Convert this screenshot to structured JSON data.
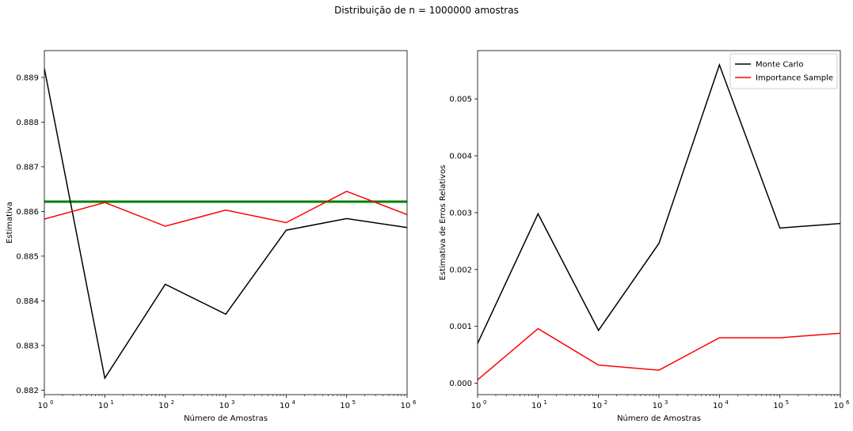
{
  "figure": {
    "suptitle": "Distribuição de n = 1000000 amostras"
  },
  "chart_data": [
    {
      "type": "line",
      "xscale": "log",
      "xlim": [
        1,
        1000000
      ],
      "ylim": [
        0.8819,
        0.8896
      ],
      "xlabel": "Número de Amostras",
      "ylabel": "Estimativa",
      "xticks": [
        1,
        10,
        100,
        1000,
        10000,
        100000,
        1000000
      ],
      "xtick_labels": [
        "10",
        "10",
        "10",
        "10",
        "10",
        "10",
        "10"
      ],
      "xtick_exponents": [
        "0",
        "1",
        "2",
        "3",
        "4",
        "5",
        "6"
      ],
      "yticks": [
        0.882,
        0.883,
        0.884,
        0.885,
        0.886,
        0.887,
        0.888,
        0.889
      ],
      "ytick_labels": [
        "0.882",
        "0.883",
        "0.884",
        "0.885",
        "0.886",
        "0.887",
        "0.888",
        "0.889"
      ],
      "grid": false,
      "x": [
        1,
        10,
        100,
        1000,
        10000,
        100000,
        1000000
      ],
      "series": [
        {
          "color": "#000000",
          "values": [
            0.8892,
            0.88227,
            0.88437,
            0.8837,
            0.88558,
            0.88584,
            0.88564
          ]
        },
        {
          "color": "#ff0000",
          "values": [
            0.88583,
            0.8862,
            0.88567,
            0.88603,
            0.88575,
            0.88645,
            0.88593
          ]
        }
      ],
      "hline": {
        "y": 0.88622,
        "color": "#008000"
      }
    },
    {
      "type": "line",
      "xscale": "log",
      "xlim": [
        1,
        1000000
      ],
      "ylim": [
        -0.0002,
        0.00585
      ],
      "xlabel": "Número de Amostras",
      "ylabel": "Estimativa de Erros Relativos",
      "xticks": [
        1,
        10,
        100,
        1000,
        10000,
        100000,
        1000000
      ],
      "xtick_labels": [
        "10",
        "10",
        "10",
        "10",
        "10",
        "10",
        "10"
      ],
      "xtick_exponents": [
        "0",
        "1",
        "2",
        "3",
        "4",
        "5",
        "6"
      ],
      "yticks": [
        0,
        0.001,
        0.002,
        0.003,
        0.004,
        0.005
      ],
      "ytick_labels": [
        "0.000",
        "0.001",
        "0.002",
        "0.003",
        "0.004",
        "0.005"
      ],
      "grid": false,
      "legend": "top-right",
      "x": [
        1,
        10,
        100,
        1000,
        10000,
        100000,
        1000000
      ],
      "series": [
        {
          "name": "Monte Carlo",
          "color": "#000000",
          "values": [
            0.0007,
            0.00298,
            0.00093,
            0.00246,
            0.0056,
            0.00273,
            0.00281
          ]
        },
        {
          "name": "Importance Sample",
          "color": "#ff0000",
          "values": [
            6e-05,
            0.00096,
            0.00032,
            0.00023,
            0.0008,
            0.0008,
            0.00088
          ]
        }
      ]
    }
  ]
}
